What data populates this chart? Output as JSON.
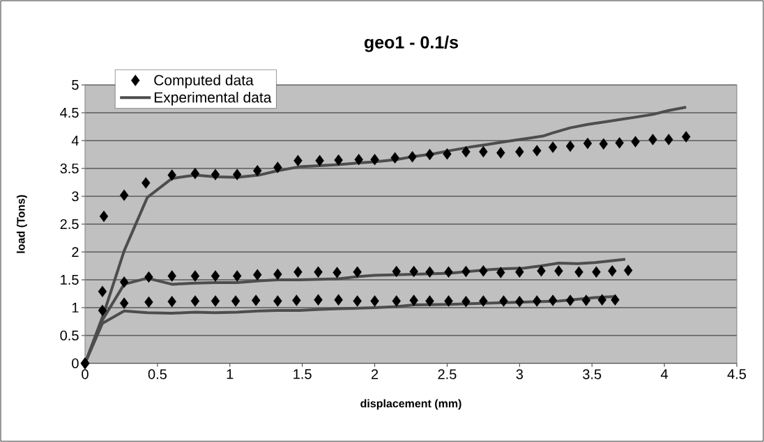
{
  "chart_data": {
    "type": "scatter",
    "title": "geo1  -  0.1/s",
    "xlabel": "displacement (mm)",
    "ylabel": "load (Tons)",
    "xlim": [
      0,
      4.5
    ],
    "ylim": [
      0,
      5
    ],
    "xticks": [
      0,
      0.5,
      1,
      1.5,
      2,
      2.5,
      3,
      3.5,
      4,
      4.5
    ],
    "yticks": [
      0,
      0.5,
      1,
      1.5,
      2,
      2.5,
      3,
      3.5,
      4,
      4.5,
      5
    ],
    "grid": "y",
    "legend": "top left",
    "series": [
      {
        "name": "Computed data",
        "marker": "diamond",
        "color": "#000000",
        "x": [
          0,
          0.13,
          0.27,
          0.42,
          0.6,
          0.76,
          0.9,
          1.05,
          1.19,
          1.33,
          1.47,
          1.62,
          1.75,
          1.89,
          2.0,
          2.14,
          2.26,
          2.38,
          2.5,
          2.63,
          2.75,
          2.87,
          3.0,
          3.12,
          3.23,
          3.35,
          3.47,
          3.58,
          3.69,
          3.8,
          3.92,
          4.03,
          4.15
        ],
        "values": [
          0,
          2.64,
          3.02,
          3.24,
          3.38,
          3.41,
          3.39,
          3.39,
          3.46,
          3.52,
          3.64,
          3.64,
          3.65,
          3.66,
          3.66,
          3.69,
          3.71,
          3.75,
          3.76,
          3.8,
          3.8,
          3.78,
          3.8,
          3.82,
          3.88,
          3.9,
          3.95,
          3.94,
          3.96,
          3.98,
          4.02,
          4.02,
          4.07
        ]
      },
      {
        "name": "Experimental data",
        "type": "line",
        "marker": "none",
        "color": "#4d4d4d",
        "x": [
          0,
          0.13,
          0.27,
          0.43,
          0.6,
          0.76,
          0.9,
          1.05,
          1.2,
          1.33,
          1.48,
          1.62,
          1.75,
          1.89,
          2.0,
          2.15,
          2.28,
          2.4,
          2.52,
          2.65,
          2.78,
          2.9,
          3.03,
          3.16,
          3.23,
          3.35,
          3.47,
          3.6,
          3.7,
          3.8,
          3.92,
          4.03,
          4.15
        ],
        "values": [
          0,
          0.9,
          2.02,
          2.98,
          3.32,
          3.38,
          3.35,
          3.34,
          3.38,
          3.46,
          3.53,
          3.55,
          3.57,
          3.6,
          3.62,
          3.66,
          3.72,
          3.76,
          3.82,
          3.88,
          3.93,
          3.98,
          4.03,
          4.08,
          4.14,
          4.23,
          4.29,
          4.34,
          4.38,
          4.42,
          4.47,
          4.54,
          4.6
        ]
      },
      {
        "marker": "diamond",
        "color": "#000000",
        "x": [
          0,
          0.12,
          0.27,
          0.44,
          0.6,
          0.76,
          0.9,
          1.05,
          1.19,
          1.33,
          1.47,
          1.61,
          1.74,
          1.88,
          2.15,
          2.27,
          2.38,
          2.51,
          2.63,
          2.75,
          2.87,
          3.0,
          3.15,
          3.27,
          3.41,
          3.53,
          3.64,
          3.75
        ],
        "values": [
          0,
          1.29,
          1.46,
          1.55,
          1.57,
          1.57,
          1.57,
          1.57,
          1.59,
          1.6,
          1.64,
          1.64,
          1.63,
          1.64,
          1.65,
          1.65,
          1.64,
          1.64,
          1.65,
          1.66,
          1.63,
          1.64,
          1.66,
          1.66,
          1.64,
          1.64,
          1.66,
          1.67
        ]
      },
      {
        "type": "line",
        "marker": "none",
        "color": "#4d4d4d",
        "x": [
          0,
          0.12,
          0.27,
          0.43,
          0.6,
          0.76,
          0.9,
          1.05,
          1.2,
          1.33,
          1.48,
          1.62,
          1.75,
          1.89,
          2.0,
          2.15,
          2.27,
          2.4,
          2.52,
          2.65,
          2.78,
          2.9,
          3.03,
          3.15,
          3.27,
          3.4,
          3.52,
          3.63,
          3.73
        ],
        "values": [
          0,
          0.78,
          1.42,
          1.53,
          1.42,
          1.44,
          1.45,
          1.45,
          1.48,
          1.5,
          1.5,
          1.51,
          1.52,
          1.56,
          1.58,
          1.59,
          1.6,
          1.61,
          1.62,
          1.65,
          1.68,
          1.7,
          1.71,
          1.75,
          1.8,
          1.79,
          1.81,
          1.84,
          1.87
        ]
      },
      {
        "marker": "diamond",
        "color": "#000000",
        "x": [
          0,
          0.12,
          0.27,
          0.44,
          0.6,
          0.76,
          0.9,
          1.04,
          1.18,
          1.33,
          1.46,
          1.61,
          1.75,
          1.88,
          2.0,
          2.15,
          2.27,
          2.38,
          2.51,
          2.63,
          2.75,
          2.89,
          3.0,
          3.12,
          3.23,
          3.35,
          3.46,
          3.57,
          3.66
        ],
        "values": [
          0,
          0.95,
          1.08,
          1.1,
          1.11,
          1.12,
          1.12,
          1.12,
          1.13,
          1.12,
          1.13,
          1.14,
          1.14,
          1.12,
          1.12,
          1.12,
          1.13,
          1.12,
          1.12,
          1.11,
          1.12,
          1.12,
          1.11,
          1.12,
          1.13,
          1.13,
          1.13,
          1.14,
          1.14
        ]
      },
      {
        "type": "line",
        "marker": "none",
        "color": "#4d4d4d",
        "x": [
          0,
          0.12,
          0.27,
          0.43,
          0.6,
          0.76,
          0.9,
          1.05,
          1.2,
          1.33,
          1.48,
          1.62,
          1.75,
          1.89,
          2.0,
          2.15,
          2.27,
          2.52,
          2.78,
          3.03,
          3.27,
          3.52,
          3.66
        ],
        "values": [
          0,
          0.72,
          0.94,
          0.91,
          0.9,
          0.92,
          0.91,
          0.92,
          0.94,
          0.95,
          0.95,
          0.97,
          0.98,
          0.99,
          1.0,
          1.02,
          1.05,
          1.06,
          1.08,
          1.1,
          1.12,
          1.18,
          1.2
        ]
      }
    ]
  }
}
